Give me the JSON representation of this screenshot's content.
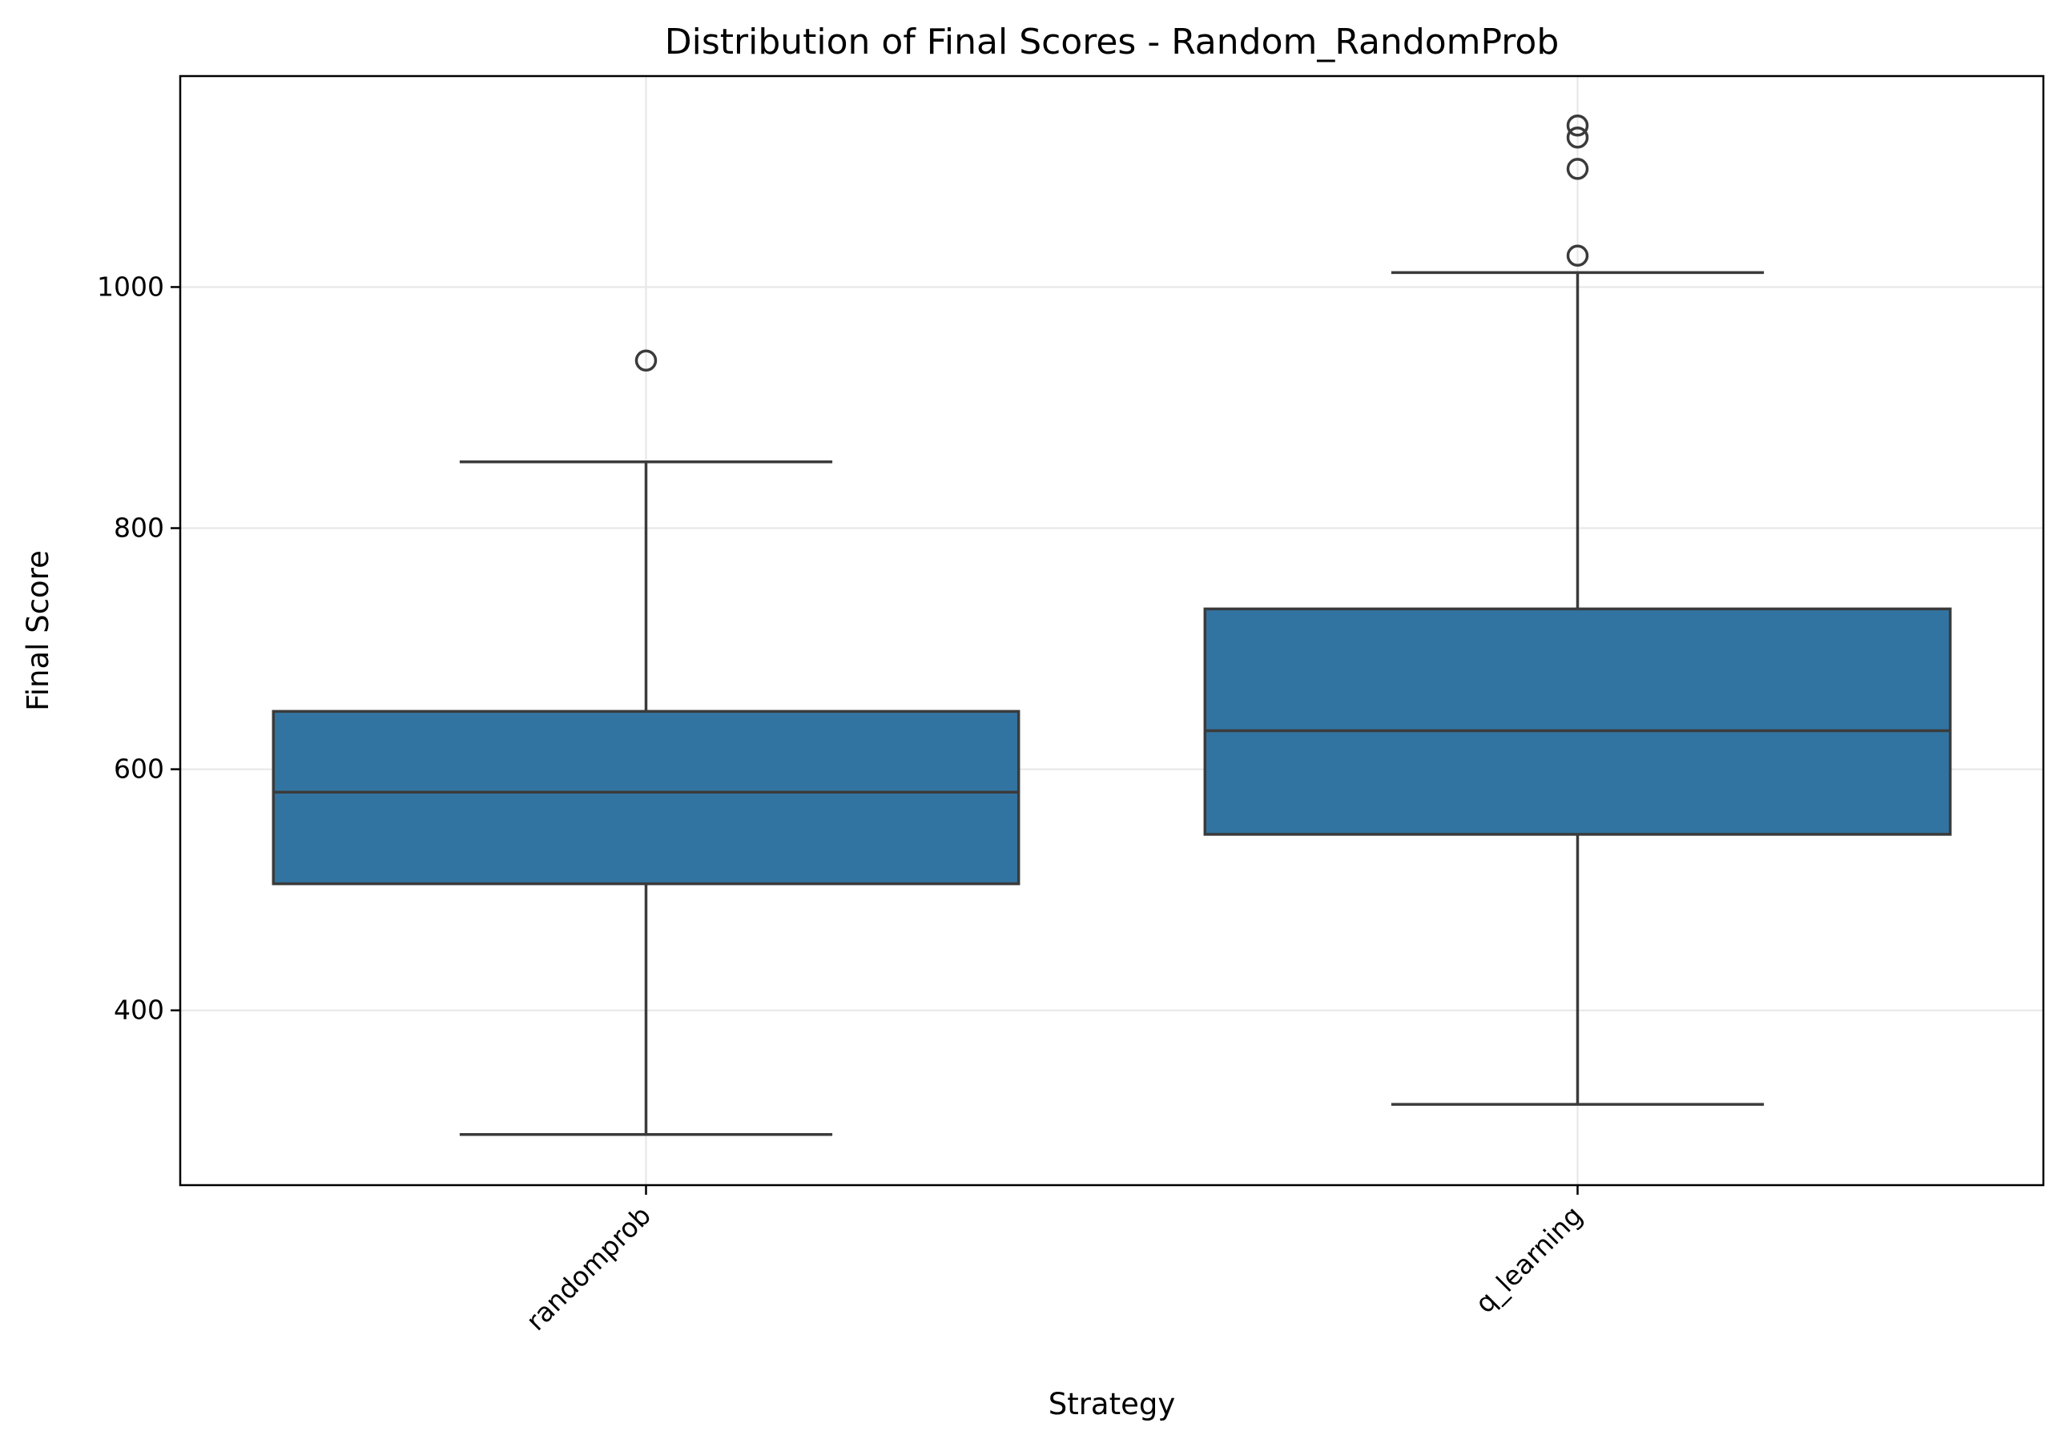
{
  "chart_data": {
    "type": "box",
    "title": "Distribution of Final Scores - Random_RandomProb",
    "xlabel": "Strategy",
    "ylabel": "Final Score",
    "ylim": [
      255,
      1175
    ],
    "yticks": [
      400,
      600,
      800,
      1000
    ],
    "grid": true,
    "box_color": "#3274a1",
    "edge_color": "#3b3b3b",
    "categories": [
      "randomprob",
      "q_learning"
    ],
    "boxes": [
      {
        "category": "randomprob",
        "whisker_low": 297,
        "q1": 505,
        "median": 581,
        "q3": 648,
        "whisker_high": 855,
        "outliers": [
          939
        ]
      },
      {
        "category": "q_learning",
        "whisker_low": 322,
        "q1": 546,
        "median": 632,
        "q3": 733,
        "whisker_high": 1012,
        "outliers": [
          1026,
          1098,
          1124,
          1134
        ]
      }
    ]
  }
}
